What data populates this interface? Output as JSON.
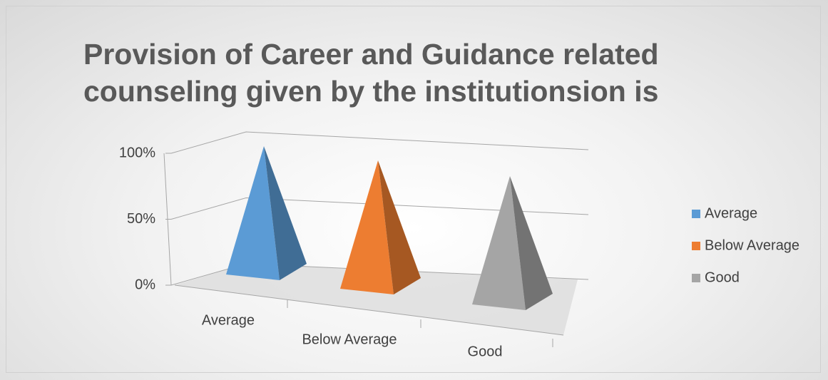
{
  "chart_data": {
    "type": "pyramid3d",
    "title": "Provision of Career and Guidance related counseling given by the institutionsion is",
    "categories": [
      "Average",
      "Below Average",
      "Good"
    ],
    "series": [
      {
        "name": "Average",
        "color": "#5b9bd5",
        "values": [
          100,
          null,
          null
        ]
      },
      {
        "name": "Below Average",
        "color": "#ed7d31",
        "values": [
          null,
          100,
          null
        ]
      },
      {
        "name": "Good",
        "color": "#a5a5a5",
        "values": [
          null,
          null,
          100
        ]
      }
    ],
    "ylim": [
      0,
      100
    ],
    "yticks": [
      {
        "value": 0,
        "label": "0%"
      },
      {
        "value": 50,
        "label": "50%"
      },
      {
        "value": 100,
        "label": "100%"
      }
    ],
    "grid": true,
    "legend": "right"
  }
}
